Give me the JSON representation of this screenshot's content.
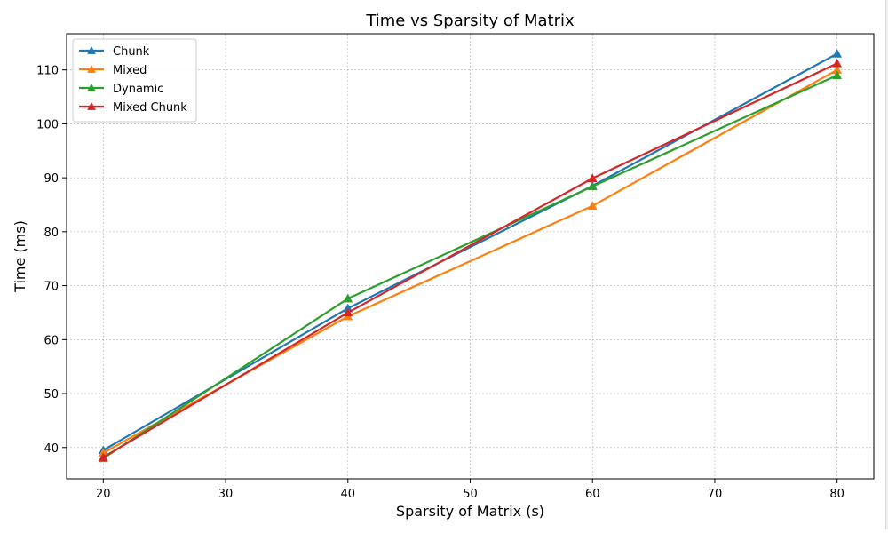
{
  "chart_data": {
    "type": "line",
    "title": "Time vs Sparsity of Matrix",
    "xlabel": "Sparsity of Matrix (s)",
    "ylabel": "Time (ms)",
    "x": [
      20,
      40,
      60,
      80
    ],
    "xlim": [
      17,
      83
    ],
    "ylim": [
      34.2,
      116.7
    ],
    "xticks": [
      20,
      30,
      40,
      50,
      60,
      70,
      80
    ],
    "yticks": [
      40,
      50,
      60,
      70,
      80,
      90,
      100,
      110
    ],
    "grid": true,
    "legend_position": "upper-left",
    "marker": "triangle-up",
    "series": [
      {
        "name": "Chunk",
        "color": "#1f77b4",
        "values": [
          39.5,
          65.8,
          88.5,
          113.0
        ]
      },
      {
        "name": "Mixed",
        "color": "#ff7f0e",
        "values": [
          39.0,
          64.3,
          84.8,
          110.0
        ]
      },
      {
        "name": "Dynamic",
        "color": "#2ca02c",
        "values": [
          38.0,
          67.6,
          88.4,
          109.0
        ]
      },
      {
        "name": "Mixed Chunk",
        "color": "#d62728",
        "values": [
          38.2,
          65.0,
          89.9,
          111.2
        ]
      }
    ]
  }
}
